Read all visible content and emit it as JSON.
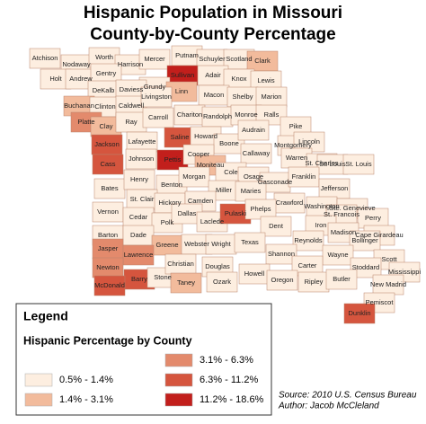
{
  "title": [
    "Hispanic Population in Missouri",
    "County-by-County Percentage"
  ],
  "legend": {
    "title": "Legend",
    "subtitle": "Hispanic Percentage by County",
    "classes": [
      {
        "label": "0.5% - 1.4%",
        "color": "#fdeee0"
      },
      {
        "label": "1.4% - 3.1%",
        "color": "#f2bb9c"
      },
      {
        "label": "3.1% - 6.3%",
        "color": "#e38a6c"
      },
      {
        "label": "6.3% - 11.2%",
        "color": "#d5553e"
      },
      {
        "label": "11.2% - 18.6%",
        "color": "#c21f1c"
      }
    ]
  },
  "source": "Source: 2010 U.S. Census Bureau",
  "author": "Author: Jacob McCleland",
  "counties": [
    {
      "name": "Atchison",
      "color": "#fdeee0"
    },
    {
      "name": "Nodaway",
      "color": "#fdeee0"
    },
    {
      "name": "Worth",
      "color": "#fdeee0"
    },
    {
      "name": "Harrison",
      "color": "#fdeee0"
    },
    {
      "name": "Mercer",
      "color": "#fdeee0"
    },
    {
      "name": "Putnam",
      "color": "#fdeee0"
    },
    {
      "name": "Schuyler",
      "color": "#fdeee0"
    },
    {
      "name": "Scotland",
      "color": "#fdeee0"
    },
    {
      "name": "Clark",
      "color": "#f2bb9c"
    },
    {
      "name": "Sullivan",
      "color": "#c21f1c"
    },
    {
      "name": "Adair",
      "color": "#fdeee0"
    },
    {
      "name": "Holt",
      "color": "#fdeee0"
    },
    {
      "name": "Andrew",
      "color": "#fdeee0"
    },
    {
      "name": "Gentry",
      "color": "#fdeee0"
    },
    {
      "name": "Knox",
      "color": "#fdeee0"
    },
    {
      "name": "Lewis",
      "color": "#fdeee0"
    },
    {
      "name": "Grundy",
      "color": "#fdeee0"
    },
    {
      "name": "DeKalb",
      "color": "#fdeee0"
    },
    {
      "name": "Daviess",
      "color": "#fdeee0"
    },
    {
      "name": "Linn",
      "color": "#f2bb9c"
    },
    {
      "name": "Macon",
      "color": "#fdeee0"
    },
    {
      "name": "Shelby",
      "color": "#fdeee0"
    },
    {
      "name": "Marion",
      "color": "#fdeee0"
    },
    {
      "name": "Buchanan",
      "color": "#f2bb9c"
    },
    {
      "name": "Clinton",
      "color": "#fdeee0"
    },
    {
      "name": "Caldwell",
      "color": "#fdeee0"
    },
    {
      "name": "Livingston",
      "color": "#fdeee0"
    },
    {
      "name": "Chariton",
      "color": "#fdeee0"
    },
    {
      "name": "Randolph",
      "color": "#fdeee0"
    },
    {
      "name": "Monroe",
      "color": "#fdeee0"
    },
    {
      "name": "Ralls",
      "color": "#fdeee0"
    },
    {
      "name": "Platte",
      "color": "#e38a6c"
    },
    {
      "name": "Clay",
      "color": "#f2bb9c"
    },
    {
      "name": "Ray",
      "color": "#fdeee0"
    },
    {
      "name": "Carroll",
      "color": "#fdeee0"
    },
    {
      "name": "Pike",
      "color": "#fdeee0"
    },
    {
      "name": "Jackson",
      "color": "#d5553e"
    },
    {
      "name": "Lafayette",
      "color": "#fdeee0"
    },
    {
      "name": "Saline",
      "color": "#d5553e"
    },
    {
      "name": "Howard",
      "color": "#fdeee0"
    },
    {
      "name": "Boone",
      "color": "#fdeee0"
    },
    {
      "name": "Audrain",
      "color": "#fdeee0"
    },
    {
      "name": "Montgomery",
      "color": "#fdeee0"
    },
    {
      "name": "Lincoln",
      "color": "#fdeee0"
    },
    {
      "name": "Cass",
      "color": "#d5553e"
    },
    {
      "name": "Johnson",
      "color": "#fdeee0"
    },
    {
      "name": "Pettis",
      "color": "#c21f1c"
    },
    {
      "name": "Cooper",
      "color": "#fdeee0"
    },
    {
      "name": "Moniteau",
      "color": "#f2bb9c"
    },
    {
      "name": "Callaway",
      "color": "#fdeee0"
    },
    {
      "name": "Warren",
      "color": "#fdeee0"
    },
    {
      "name": "St. Charles",
      "color": "#fdeee0"
    },
    {
      "name": "St. Louis",
      "color": "#fdeee0"
    },
    {
      "name": "St. Louis",
      "color": "#fdeee0"
    },
    {
      "name": "Cole",
      "color": "#fdeee0"
    },
    {
      "name": "Osage",
      "color": "#fdeee0"
    },
    {
      "name": "Gasconade",
      "color": "#fdeee0"
    },
    {
      "name": "Franklin",
      "color": "#fdeee0"
    },
    {
      "name": "Jefferson",
      "color": "#fdeee0"
    },
    {
      "name": "Bates",
      "color": "#fdeee0"
    },
    {
      "name": "Henry",
      "color": "#fdeee0"
    },
    {
      "name": "Benton",
      "color": "#fdeee0"
    },
    {
      "name": "Morgan",
      "color": "#fdeee0"
    },
    {
      "name": "Miller",
      "color": "#fdeee0"
    },
    {
      "name": "Maries",
      "color": "#fdeee0"
    },
    {
      "name": "St. Clair",
      "color": "#fdeee0"
    },
    {
      "name": "Hickory",
      "color": "#fdeee0"
    },
    {
      "name": "Camden",
      "color": "#fdeee0"
    },
    {
      "name": "Crawford",
      "color": "#fdeee0"
    },
    {
      "name": "Washington",
      "color": "#fdeee0"
    },
    {
      "name": "Ste. Genevieve",
      "color": "#fdeee0"
    },
    {
      "name": "St. Francois",
      "color": "#fdeee0"
    },
    {
      "name": "Vernon",
      "color": "#fdeee0"
    },
    {
      "name": "Cedar",
      "color": "#fdeee0"
    },
    {
      "name": "Polk",
      "color": "#fdeee0"
    },
    {
      "name": "Dallas",
      "color": "#fdeee0"
    },
    {
      "name": "Laclede",
      "color": "#fdeee0"
    },
    {
      "name": "Pulaski",
      "color": "#d5553e"
    },
    {
      "name": "Phelps",
      "color": "#fdeee0"
    },
    {
      "name": "Dent",
      "color": "#fdeee0"
    },
    {
      "name": "Perry",
      "color": "#fdeee0"
    },
    {
      "name": "Barton",
      "color": "#fdeee0"
    },
    {
      "name": "Dade",
      "color": "#fdeee0"
    },
    {
      "name": "Greene",
      "color": "#f2bb9c"
    },
    {
      "name": "Webster",
      "color": "#fdeee0"
    },
    {
      "name": "Wright",
      "color": "#fdeee0"
    },
    {
      "name": "Texas",
      "color": "#fdeee0"
    },
    {
      "name": "Iron",
      "color": "#fdeee0"
    },
    {
      "name": "Madison",
      "color": "#fdeee0"
    },
    {
      "name": "Cape Girardeau",
      "color": "#fdeee0"
    },
    {
      "name": "Bollinger",
      "color": "#fdeee0"
    },
    {
      "name": "Reynolds",
      "color": "#fdeee0"
    },
    {
      "name": "Jasper",
      "color": "#e38a6c"
    },
    {
      "name": "Lawrence",
      "color": "#e38a6c"
    },
    {
      "name": "Shannon",
      "color": "#fdeee0"
    },
    {
      "name": "Wayne",
      "color": "#fdeee0"
    },
    {
      "name": "Scott",
      "color": "#fdeee0"
    },
    {
      "name": "Carter",
      "color": "#fdeee0"
    },
    {
      "name": "Stoddard",
      "color": "#fdeee0"
    },
    {
      "name": "Newton",
      "color": "#e38a6c"
    },
    {
      "name": "Barry",
      "color": "#d5553e"
    },
    {
      "name": "Stone",
      "color": "#fdeee0"
    },
    {
      "name": "Christian",
      "color": "#fdeee0"
    },
    {
      "name": "Douglas",
      "color": "#fdeee0"
    },
    {
      "name": "Howell",
      "color": "#fdeee0"
    },
    {
      "name": "Mississippi",
      "color": "#fdeee0"
    },
    {
      "name": "McDonald",
      "color": "#d5553e"
    },
    {
      "name": "Taney",
      "color": "#f2bb9c"
    },
    {
      "name": "Ozark",
      "color": "#fdeee0"
    },
    {
      "name": "Oregon",
      "color": "#fdeee0"
    },
    {
      "name": "Ripley",
      "color": "#fdeee0"
    },
    {
      "name": "Butler",
      "color": "#fdeee0"
    },
    {
      "name": "New Madrid",
      "color": "#fdeee0"
    },
    {
      "name": "Pemiscot",
      "color": "#fdeee0"
    },
    {
      "name": "Dunklin",
      "color": "#d5553e"
    }
  ]
}
